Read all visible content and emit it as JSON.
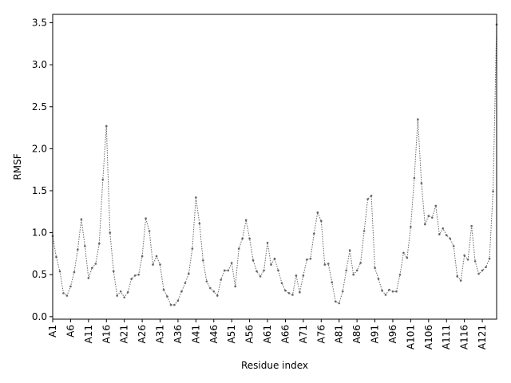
{
  "chart_data": {
    "type": "line",
    "title": "",
    "xlabel": "Residue index",
    "ylabel": "RMSF",
    "ylim": [
      -0.03,
      3.6
    ],
    "grid": false,
    "line_style": "dotted",
    "marker": "point",
    "colors": {
      "series": "#666666",
      "axis": "#000000"
    },
    "x_tick_labels": [
      "A1",
      "A6",
      "A11",
      "A16",
      "A21",
      "A26",
      "A31",
      "A36",
      "A41",
      "A46",
      "A51",
      "A56",
      "A61",
      "A66",
      "A71",
      "A76",
      "A81",
      "A86",
      "A91",
      "A96",
      "A101",
      "A106",
      "A111",
      "A116",
      "A121"
    ],
    "y_ticks": [
      0.0,
      0.5,
      1.0,
      1.5,
      2.0,
      2.5,
      3.0,
      3.5
    ],
    "y_tick_labels": [
      "0.0",
      "0.5",
      "1.0",
      "1.5",
      "2.0",
      "2.5",
      "3.0",
      "3.5"
    ],
    "series": [
      {
        "values": [
          0.96,
          0.71,
          0.54,
          0.28,
          0.25,
          0.36,
          0.53,
          0.8,
          1.16,
          0.84,
          0.46,
          0.58,
          0.63,
          0.87,
          1.63,
          2.27,
          1.0,
          0.54,
          0.25,
          0.3,
          0.23,
          0.29,
          0.45,
          0.49,
          0.5,
          0.72,
          1.17,
          1.02,
          0.62,
          0.72,
          0.62,
          0.32,
          0.24,
          0.14,
          0.14,
          0.19,
          0.3,
          0.4,
          0.51,
          0.81,
          1.42,
          1.11,
          0.67,
          0.42,
          0.34,
          0.3,
          0.25,
          0.44,
          0.55,
          0.55,
          0.64,
          0.36,
          0.81,
          0.93,
          1.15,
          0.93,
          0.67,
          0.54,
          0.48,
          0.55,
          0.88,
          0.62,
          0.69,
          0.55,
          0.4,
          0.31,
          0.28,
          0.26,
          0.49,
          0.29,
          0.49,
          0.68,
          0.69,
          0.99,
          1.24,
          1.14,
          0.62,
          0.63,
          0.41,
          0.18,
          0.16,
          0.3,
          0.55,
          0.79,
          0.5,
          0.55,
          0.64,
          1.02,
          1.4,
          1.44,
          0.58,
          0.45,
          0.31,
          0.26,
          0.32,
          0.3,
          0.3,
          0.5,
          0.76,
          0.7,
          1.07,
          1.65,
          2.35,
          1.59,
          1.1,
          1.2,
          1.18,
          1.32,
          0.98,
          1.05,
          0.97,
          0.93,
          0.84,
          0.48,
          0.43,
          0.73,
          0.68,
          1.08,
          0.66,
          0.51,
          0.55,
          0.59,
          0.69,
          1.49,
          3.48
        ]
      }
    ]
  }
}
